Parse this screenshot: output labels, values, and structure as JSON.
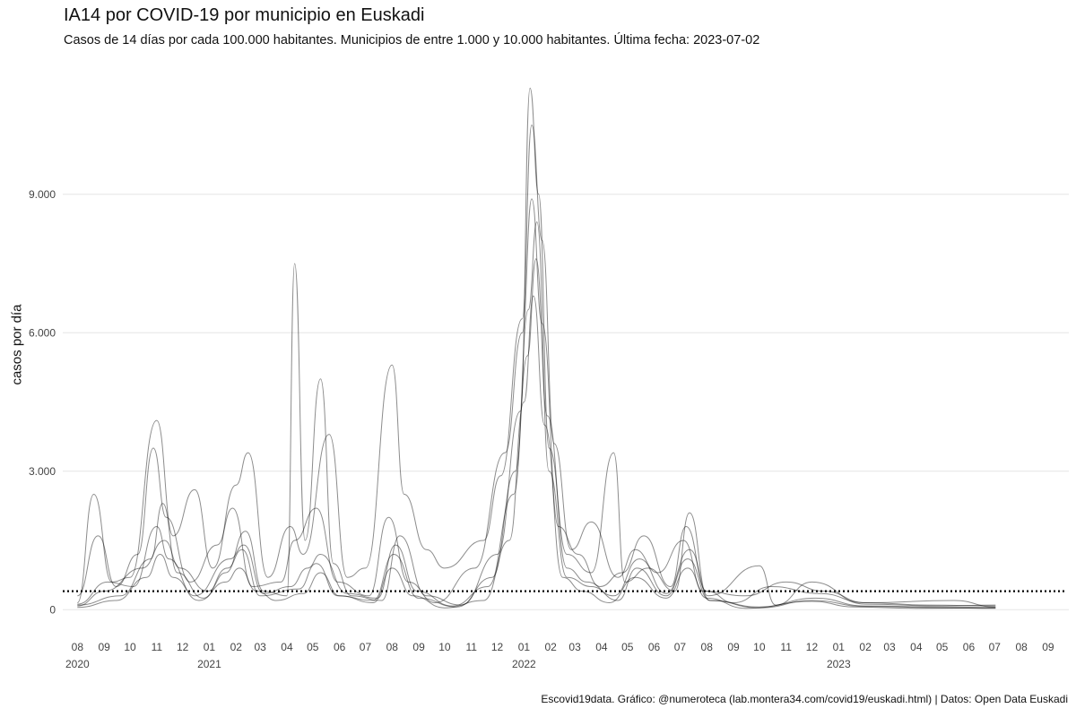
{
  "chart_data": {
    "type": "line",
    "title": "IA14 por COVID-19 por municipio en Euskadi",
    "subtitle": "Casos de 14 días por cada 100.000 habitantes. Municipios de entre 1.000 y 10.000 habitantes. Última fecha: 2023-07-02",
    "caption": "Escovid19data. Gráfico: @numeroteca (lab.montera34.com/covid19/euskadi.html) | Datos: Open Data Euskadi",
    "ylabel": "casos por día",
    "ylim": [
      -500,
      11500
    ],
    "y_ticks": [
      {
        "value": 0,
        "label": "0"
      },
      {
        "value": 3000,
        "label": "3.000"
      },
      {
        "value": 6000,
        "label": "6.000"
      },
      {
        "value": 9000,
        "label": "9.000"
      }
    ],
    "xlim": [
      "2020-07-15",
      "2023-09-25"
    ],
    "x_ticks": [
      {
        "date": "2020-08-01",
        "label": "08"
      },
      {
        "date": "2020-09-01",
        "label": "09"
      },
      {
        "date": "2020-10-01",
        "label": "10"
      },
      {
        "date": "2020-11-01",
        "label": "11"
      },
      {
        "date": "2020-12-01",
        "label": "12"
      },
      {
        "date": "2021-01-01",
        "label": "01"
      },
      {
        "date": "2021-02-01",
        "label": "02"
      },
      {
        "date": "2021-03-01",
        "label": "03"
      },
      {
        "date": "2021-04-01",
        "label": "04"
      },
      {
        "date": "2021-05-01",
        "label": "05"
      },
      {
        "date": "2021-06-01",
        "label": "06"
      },
      {
        "date": "2021-07-01",
        "label": "07"
      },
      {
        "date": "2021-08-01",
        "label": "08"
      },
      {
        "date": "2021-09-01",
        "label": "09"
      },
      {
        "date": "2021-10-01",
        "label": "10"
      },
      {
        "date": "2021-11-01",
        "label": "11"
      },
      {
        "date": "2021-12-01",
        "label": "12"
      },
      {
        "date": "2022-01-01",
        "label": "01"
      },
      {
        "date": "2022-02-01",
        "label": "02"
      },
      {
        "date": "2022-03-01",
        "label": "03"
      },
      {
        "date": "2022-04-01",
        "label": "04"
      },
      {
        "date": "2022-05-01",
        "label": "05"
      },
      {
        "date": "2022-06-01",
        "label": "06"
      },
      {
        "date": "2022-07-01",
        "label": "07"
      },
      {
        "date": "2022-08-01",
        "label": "08"
      },
      {
        "date": "2022-09-01",
        "label": "09"
      },
      {
        "date": "2022-10-01",
        "label": "10"
      },
      {
        "date": "2022-11-01",
        "label": "11"
      },
      {
        "date": "2022-12-01",
        "label": "12"
      },
      {
        "date": "2023-01-01",
        "label": "01"
      },
      {
        "date": "2023-02-01",
        "label": "02"
      },
      {
        "date": "2023-03-01",
        "label": "03"
      },
      {
        "date": "2023-04-01",
        "label": "04"
      },
      {
        "date": "2023-05-01",
        "label": "05"
      },
      {
        "date": "2023-06-01",
        "label": "06"
      },
      {
        "date": "2023-07-01",
        "label": "07"
      },
      {
        "date": "2023-08-01",
        "label": "08"
      },
      {
        "date": "2023-09-01",
        "label": "09"
      }
    ],
    "year_labels": [
      {
        "date": "2020-08-01",
        "label": "2020"
      },
      {
        "date": "2021-01-01",
        "label": "2021"
      },
      {
        "date": "2022-01-01",
        "label": "2022"
      },
      {
        "date": "2023-01-01",
        "label": "2023"
      }
    ],
    "reference_line": {
      "value": 400,
      "style": "dotted"
    },
    "grid": true,
    "legend": "none",
    "line_color": "#000000",
    "grid_color": "#e6e6e6",
    "series": [
      {
        "points": [
          [
            "2020-08-01",
            50
          ],
          [
            "2020-09-15",
            200
          ],
          [
            "2020-10-20",
            700
          ],
          [
            "2020-11-05",
            1200
          ],
          [
            "2020-11-20",
            700
          ],
          [
            "2020-12-20",
            200
          ],
          [
            "2021-01-20",
            600
          ],
          [
            "2021-02-05",
            900
          ],
          [
            "2021-02-25",
            400
          ],
          [
            "2021-03-20",
            200
          ],
          [
            "2021-04-20",
            350
          ],
          [
            "2021-05-10",
            800
          ],
          [
            "2021-06-01",
            300
          ],
          [
            "2021-07-10",
            150
          ],
          [
            "2021-08-01",
            900
          ],
          [
            "2021-08-25",
            300
          ],
          [
            "2021-10-01",
            40
          ],
          [
            "2021-11-15",
            200
          ],
          [
            "2021-12-15",
            1500
          ],
          [
            "2022-01-01",
            4500
          ],
          [
            "2022-01-12",
            6800
          ],
          [
            "2022-01-25",
            4000
          ],
          [
            "2022-02-15",
            700
          ],
          [
            "2022-03-10",
            400
          ],
          [
            "2022-04-10",
            150
          ],
          [
            "2022-05-10",
            700
          ],
          [
            "2022-06-15",
            250
          ],
          [
            "2022-07-10",
            900
          ],
          [
            "2022-08-01",
            250
          ],
          [
            "2022-09-15",
            30
          ],
          [
            "2022-12-01",
            180
          ],
          [
            "2023-01-20",
            60
          ],
          [
            "2023-04-01",
            30
          ],
          [
            "2023-07-02",
            40
          ]
        ]
      },
      {
        "points": [
          [
            "2020-08-01",
            120
          ],
          [
            "2020-09-05",
            600
          ],
          [
            "2020-10-05",
            500
          ],
          [
            "2020-11-01",
            1800
          ],
          [
            "2020-11-15",
            1100
          ],
          [
            "2020-12-15",
            300
          ],
          [
            "2021-01-25",
            1100
          ],
          [
            "2021-02-10",
            1400
          ],
          [
            "2021-03-05",
            350
          ],
          [
            "2021-04-05",
            500
          ],
          [
            "2021-04-25",
            900
          ],
          [
            "2021-05-10",
            1200
          ],
          [
            "2021-06-10",
            350
          ],
          [
            "2021-07-15",
            250
          ],
          [
            "2021-08-05",
            1400
          ],
          [
            "2021-08-30",
            400
          ],
          [
            "2021-10-10",
            80
          ],
          [
            "2021-11-20",
            500
          ],
          [
            "2021-12-20",
            2500
          ],
          [
            "2022-01-05",
            5500
          ],
          [
            "2022-01-15",
            7600
          ],
          [
            "2022-01-28",
            4200
          ],
          [
            "2022-02-20",
            900
          ],
          [
            "2022-03-15",
            600
          ],
          [
            "2022-04-15",
            300
          ],
          [
            "2022-05-15",
            1100
          ],
          [
            "2022-06-15",
            350
          ],
          [
            "2022-07-12",
            1300
          ],
          [
            "2022-08-05",
            200
          ],
          [
            "2022-10-01",
            60
          ],
          [
            "2022-12-05",
            250
          ],
          [
            "2023-02-01",
            80
          ],
          [
            "2023-05-01",
            60
          ],
          [
            "2023-07-02",
            50
          ]
        ]
      },
      {
        "points": [
          [
            "2020-08-01",
            300
          ],
          [
            "2020-08-25",
            1600
          ],
          [
            "2020-09-15",
            500
          ],
          [
            "2020-10-10",
            1200
          ],
          [
            "2020-10-28",
            3500
          ],
          [
            "2020-11-12",
            2000
          ],
          [
            "2020-12-10",
            600
          ],
          [
            "2021-01-10",
            1400
          ],
          [
            "2021-01-28",
            2200
          ],
          [
            "2021-02-20",
            500
          ],
          [
            "2021-03-25",
            600
          ],
          [
            "2021-04-10",
            1500
          ],
          [
            "2021-05-05",
            2200
          ],
          [
            "2021-05-30",
            600
          ],
          [
            "2021-07-05",
            300
          ],
          [
            "2021-07-28",
            2000
          ],
          [
            "2021-08-20",
            600
          ],
          [
            "2021-09-20",
            150
          ],
          [
            "2021-11-05",
            900
          ],
          [
            "2021-12-10",
            3400
          ],
          [
            "2021-12-30",
            6000
          ],
          [
            "2022-01-10",
            8900
          ],
          [
            "2022-01-22",
            6200
          ],
          [
            "2022-02-10",
            1800
          ],
          [
            "2022-03-05",
            1200
          ],
          [
            "2022-03-30",
            500
          ],
          [
            "2022-04-25",
            800
          ],
          [
            "2022-05-20",
            1600
          ],
          [
            "2022-06-20",
            500
          ],
          [
            "2022-07-08",
            1800
          ],
          [
            "2022-08-01",
            400
          ],
          [
            "2022-09-01",
            150
          ],
          [
            "2022-10-15",
            500
          ],
          [
            "2022-12-10",
            350
          ],
          [
            "2023-02-01",
            150
          ],
          [
            "2023-04-15",
            100
          ],
          [
            "2023-07-02",
            80
          ]
        ]
      },
      {
        "points": [
          [
            "2020-08-01",
            80
          ],
          [
            "2020-09-01",
            400
          ],
          [
            "2020-10-15",
            900
          ],
          [
            "2020-11-10",
            1500
          ],
          [
            "2020-11-28",
            900
          ],
          [
            "2020-12-30",
            400
          ],
          [
            "2021-01-20",
            800
          ],
          [
            "2021-02-12",
            1700
          ],
          [
            "2021-03-05",
            400
          ],
          [
            "2021-04-01",
            300
          ],
          [
            "2021-04-10",
            7500
          ],
          [
            "2021-04-22",
            1500
          ],
          [
            "2021-05-10",
            5000
          ],
          [
            "2021-05-25",
            1000
          ],
          [
            "2021-06-15",
            300
          ],
          [
            "2021-07-20",
            200
          ],
          [
            "2021-08-10",
            1600
          ],
          [
            "2021-09-10",
            300
          ],
          [
            "2021-10-20",
            100
          ],
          [
            "2021-12-01",
            1200
          ],
          [
            "2021-12-28",
            4300
          ],
          [
            "2022-01-08",
            11300
          ],
          [
            "2022-01-18",
            9000
          ],
          [
            "2022-01-30",
            3500
          ],
          [
            "2022-02-20",
            1200
          ],
          [
            "2022-03-20",
            800
          ],
          [
            "2022-04-15",
            3400
          ],
          [
            "2022-04-28",
            600
          ],
          [
            "2022-05-25",
            900
          ],
          [
            "2022-06-25",
            400
          ],
          [
            "2022-07-12",
            2100
          ],
          [
            "2022-08-02",
            300
          ],
          [
            "2022-10-01",
            950
          ],
          [
            "2022-10-20",
            100
          ],
          [
            "2022-12-01",
            600
          ],
          [
            "2023-02-01",
            120
          ],
          [
            "2023-05-01",
            80
          ],
          [
            "2023-07-02",
            100
          ]
        ]
      },
      {
        "points": [
          [
            "2020-08-01",
            150
          ],
          [
            "2020-08-20",
            2500
          ],
          [
            "2020-09-10",
            600
          ],
          [
            "2020-10-01",
            700
          ],
          [
            "2020-11-01",
            4100
          ],
          [
            "2020-11-20",
            1600
          ],
          [
            "2020-12-15",
            2600
          ],
          [
            "2021-01-05",
            900
          ],
          [
            "2021-02-01",
            2700
          ],
          [
            "2021-02-15",
            3400
          ],
          [
            "2021-03-10",
            700
          ],
          [
            "2021-04-05",
            1800
          ],
          [
            "2021-04-20",
            1200
          ],
          [
            "2021-05-20",
            3800
          ],
          [
            "2021-06-10",
            700
          ],
          [
            "2021-07-01",
            900
          ],
          [
            "2021-08-01",
            5300
          ],
          [
            "2021-08-15",
            2500
          ],
          [
            "2021-09-10",
            1300
          ],
          [
            "2021-10-01",
            900
          ],
          [
            "2021-11-15",
            1500
          ],
          [
            "2021-12-05",
            2900
          ],
          [
            "2021-12-30",
            6300
          ],
          [
            "2022-01-10",
            10500
          ],
          [
            "2022-01-22",
            8000
          ],
          [
            "2022-02-05",
            3600
          ],
          [
            "2022-02-25",
            1300
          ],
          [
            "2022-03-20",
            1900
          ],
          [
            "2022-04-20",
            700
          ],
          [
            "2022-05-10",
            1300
          ],
          [
            "2022-06-05",
            800
          ],
          [
            "2022-07-05",
            1500
          ],
          [
            "2022-07-28",
            400
          ],
          [
            "2022-09-15",
            300
          ],
          [
            "2022-11-01",
            600
          ],
          [
            "2022-12-15",
            400
          ],
          [
            "2023-02-01",
            150
          ],
          [
            "2023-05-15",
            200
          ],
          [
            "2023-07-02",
            60
          ]
        ]
      },
      {
        "points": [
          [
            "2020-08-01",
            100
          ],
          [
            "2020-09-20",
            300
          ],
          [
            "2020-10-25",
            1100
          ],
          [
            "2020-11-08",
            2300
          ],
          [
            "2020-11-25",
            800
          ],
          [
            "2020-12-25",
            250
          ],
          [
            "2021-01-22",
            900
          ],
          [
            "2021-02-08",
            1300
          ],
          [
            "2021-03-01",
            300
          ],
          [
            "2021-04-15",
            450
          ],
          [
            "2021-05-05",
            1000
          ],
          [
            "2021-05-30",
            300
          ],
          [
            "2021-07-10",
            200
          ],
          [
            "2021-08-03",
            1200
          ],
          [
            "2021-09-01",
            250
          ],
          [
            "2021-10-15",
            60
          ],
          [
            "2021-11-25",
            700
          ],
          [
            "2021-12-22",
            3000
          ],
          [
            "2022-01-06",
            6500
          ],
          [
            "2022-01-16",
            8400
          ],
          [
            "2022-01-30",
            3000
          ],
          [
            "2022-02-20",
            700
          ],
          [
            "2022-03-20",
            500
          ],
          [
            "2022-04-20",
            200
          ],
          [
            "2022-05-12",
            900
          ],
          [
            "2022-06-15",
            300
          ],
          [
            "2022-07-10",
            1100
          ],
          [
            "2022-08-05",
            200
          ],
          [
            "2022-10-01",
            40
          ],
          [
            "2022-12-01",
            200
          ],
          [
            "2023-02-01",
            70
          ],
          [
            "2023-05-01",
            40
          ],
          [
            "2023-07-02",
            30
          ]
        ]
      }
    ]
  }
}
